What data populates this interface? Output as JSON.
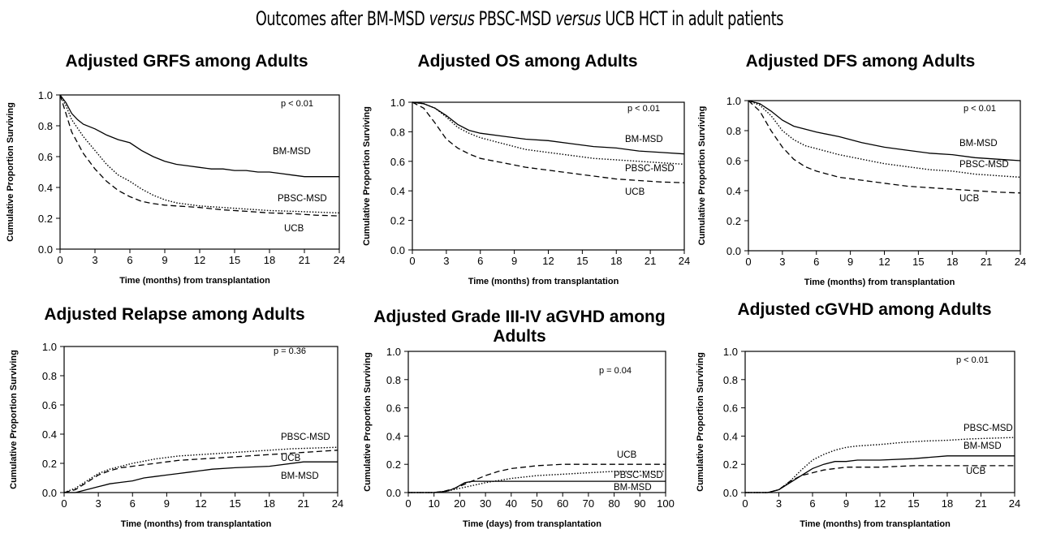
{
  "figure": {
    "title_part1": "Outcomes after BM-MSD ",
    "title_italic1": "versus",
    "title_part2": " PBSC-MSD ",
    "title_italic2": "versus",
    "title_part3": " UCB HCT in adult patients"
  },
  "chart_data": [
    {
      "id": "grfs",
      "type": "line",
      "title": "Adjusted GRFS among Adults",
      "xlabel": "Time (months) from transplantation",
      "ylabel": "Cumulative Proportion Surviving",
      "xlim": [
        0,
        24
      ],
      "ylim": [
        0,
        1
      ],
      "xticks": [
        0,
        3,
        6,
        9,
        12,
        15,
        18,
        21,
        24
      ],
      "yticks": [
        0,
        0.2,
        0.4,
        0.6,
        0.8,
        1
      ],
      "ytick_labels": [
        "0.0",
        "0.2",
        "0.4",
        "0.6",
        "0.8",
        "1.0"
      ],
      "annotation": "p < 0.01",
      "series": [
        {
          "name": "BM-MSD",
          "style": "solid",
          "x": [
            0,
            0.5,
            1,
            1.5,
            2,
            3,
            4,
            5,
            6,
            7,
            8,
            9,
            10,
            11,
            12,
            13,
            14,
            15,
            16,
            17,
            18,
            19,
            20,
            21,
            22,
            23,
            24
          ],
          "y": [
            1.0,
            0.95,
            0.88,
            0.84,
            0.81,
            0.78,
            0.74,
            0.71,
            0.69,
            0.64,
            0.6,
            0.57,
            0.55,
            0.54,
            0.53,
            0.52,
            0.52,
            0.51,
            0.51,
            0.5,
            0.5,
            0.49,
            0.48,
            0.47,
            0.47,
            0.47,
            0.47
          ]
        },
        {
          "name": "PBSC-MSD",
          "style": "dotted",
          "x": [
            0,
            0.5,
            1,
            2,
            3,
            4,
            5,
            6,
            7,
            8,
            9,
            10,
            11,
            12,
            14,
            16,
            18,
            20,
            22,
            24
          ],
          "y": [
            1.0,
            0.93,
            0.84,
            0.73,
            0.64,
            0.55,
            0.48,
            0.44,
            0.39,
            0.35,
            0.32,
            0.3,
            0.29,
            0.28,
            0.27,
            0.26,
            0.25,
            0.245,
            0.24,
            0.235
          ]
        },
        {
          "name": "UCB",
          "style": "dashed",
          "x": [
            0,
            0.5,
            1,
            2,
            3,
            4,
            5,
            6,
            7,
            8,
            9,
            10,
            12,
            14,
            16,
            18,
            20,
            22,
            24
          ],
          "y": [
            1.0,
            0.88,
            0.76,
            0.62,
            0.52,
            0.44,
            0.38,
            0.34,
            0.31,
            0.295,
            0.285,
            0.28,
            0.27,
            0.255,
            0.245,
            0.235,
            0.23,
            0.22,
            0.215
          ]
        }
      ],
      "series_labels": [
        "BM-MSD",
        "PBSC-MSD",
        "UCB"
      ]
    },
    {
      "id": "os",
      "type": "line",
      "title": "Adjusted OS among Adults",
      "xlabel": "Time (months)  from transplantation",
      "ylabel": "Cumulative Proportion Surviving",
      "xlim": [
        0,
        24
      ],
      "ylim": [
        0,
        1
      ],
      "xticks": [
        0,
        3,
        6,
        9,
        12,
        15,
        18,
        21,
        24
      ],
      "yticks": [
        0,
        0.2,
        0.4,
        0.6,
        0.8,
        1
      ],
      "ytick_labels": [
        "0.0",
        "0.2",
        "0.4",
        "0.6",
        "0.8",
        "1.0"
      ],
      "annotation": "p < 0.01",
      "series": [
        {
          "name": "BM-MSD",
          "style": "solid",
          "x": [
            0,
            1,
            2,
            3,
            4,
            5,
            6,
            8,
            10,
            12,
            14,
            16,
            18,
            20,
            22,
            24
          ],
          "y": [
            1.0,
            0.99,
            0.96,
            0.91,
            0.85,
            0.81,
            0.79,
            0.77,
            0.75,
            0.74,
            0.72,
            0.7,
            0.69,
            0.67,
            0.66,
            0.65
          ]
        },
        {
          "name": "PBSC-MSD",
          "style": "dotted",
          "x": [
            0,
            1,
            2,
            3,
            4,
            5,
            6,
            8,
            10,
            12,
            14,
            16,
            18,
            20,
            22,
            24
          ],
          "y": [
            1.0,
            0.99,
            0.96,
            0.9,
            0.83,
            0.79,
            0.76,
            0.72,
            0.68,
            0.66,
            0.64,
            0.62,
            0.61,
            0.6,
            0.59,
            0.58
          ]
        },
        {
          "name": "UCB",
          "style": "dashed",
          "x": [
            0,
            1,
            2,
            3,
            4,
            5,
            6,
            8,
            10,
            12,
            14,
            16,
            18,
            20,
            22,
            24
          ],
          "y": [
            1.0,
            0.96,
            0.86,
            0.75,
            0.69,
            0.65,
            0.62,
            0.59,
            0.56,
            0.54,
            0.52,
            0.5,
            0.48,
            0.47,
            0.46,
            0.455
          ]
        }
      ],
      "series_labels": [
        "BM-MSD",
        "PBSC-MSD",
        "UCB"
      ]
    },
    {
      "id": "dfs",
      "type": "line",
      "title": "Adjusted DFS among Adults",
      "xlabel": "Time (months)  from transplantation",
      "ylabel": "Cumulative Proportion Surviving",
      "xlim": [
        0,
        24
      ],
      "ylim": [
        0,
        1
      ],
      "xticks": [
        0,
        3,
        6,
        9,
        12,
        15,
        18,
        21,
        24
      ],
      "yticks": [
        0,
        0.2,
        0.4,
        0.6,
        0.8,
        1
      ],
      "ytick_labels": [
        "0.0",
        "0.2",
        "0.4",
        "0.6",
        "0.8",
        "1.0"
      ],
      "annotation": "p < 0.01",
      "series": [
        {
          "name": "BM-MSD",
          "style": "solid",
          "x": [
            0,
            1,
            2,
            3,
            4,
            5,
            6,
            8,
            10,
            12,
            14,
            16,
            18,
            20,
            22,
            24
          ],
          "y": [
            1.0,
            0.98,
            0.93,
            0.87,
            0.83,
            0.81,
            0.79,
            0.76,
            0.72,
            0.69,
            0.67,
            0.65,
            0.64,
            0.62,
            0.61,
            0.6
          ]
        },
        {
          "name": "PBSC-MSD",
          "style": "dotted",
          "x": [
            0,
            1,
            2,
            3,
            4,
            5,
            6,
            8,
            10,
            12,
            14,
            16,
            18,
            20,
            22,
            24
          ],
          "y": [
            1.0,
            0.97,
            0.9,
            0.8,
            0.74,
            0.7,
            0.68,
            0.64,
            0.61,
            0.58,
            0.56,
            0.54,
            0.53,
            0.51,
            0.5,
            0.49
          ]
        },
        {
          "name": "UCB",
          "style": "dashed",
          "x": [
            0,
            1,
            2,
            3,
            4,
            5,
            6,
            8,
            10,
            12,
            14,
            16,
            18,
            20,
            22,
            24
          ],
          "y": [
            1.0,
            0.93,
            0.8,
            0.69,
            0.61,
            0.56,
            0.53,
            0.49,
            0.47,
            0.45,
            0.43,
            0.42,
            0.41,
            0.4,
            0.39,
            0.385
          ]
        }
      ],
      "series_labels": [
        "BM-MSD",
        "PBSC-MSD",
        "UCB"
      ]
    },
    {
      "id": "relapse",
      "type": "line",
      "title": "Adjusted Relapse among Adults",
      "xlabel": "Time (months)  from transplantation",
      "ylabel": "Cumulative Proportion Surviving",
      "xlim": [
        0,
        24
      ],
      "ylim": [
        0,
        1
      ],
      "xticks": [
        0,
        3,
        6,
        9,
        12,
        15,
        18,
        21,
        24
      ],
      "yticks": [
        0,
        0.2,
        0.4,
        0.6,
        0.8,
        1
      ],
      "ytick_labels": [
        "0.0",
        "0.2",
        "0.4",
        "0.6",
        "0.8",
        "1.0"
      ],
      "annotation": "p = 0.36",
      "series": [
        {
          "name": "PBSC-MSD",
          "style": "dotted",
          "x": [
            0,
            1,
            2,
            3,
            4,
            5,
            6,
            8,
            10,
            12,
            14,
            16,
            18,
            20,
            22,
            24
          ],
          "y": [
            0,
            0.03,
            0.08,
            0.13,
            0.16,
            0.18,
            0.2,
            0.23,
            0.25,
            0.26,
            0.27,
            0.28,
            0.29,
            0.3,
            0.305,
            0.31
          ]
        },
        {
          "name": "UCB",
          "style": "dashed",
          "x": [
            0,
            1,
            2,
            3,
            4,
            5,
            6,
            8,
            10,
            12,
            14,
            16,
            18,
            20,
            22,
            24
          ],
          "y": [
            0,
            0.02,
            0.07,
            0.12,
            0.15,
            0.17,
            0.18,
            0.2,
            0.22,
            0.23,
            0.24,
            0.25,
            0.26,
            0.27,
            0.28,
            0.29
          ]
        },
        {
          "name": "BM-MSD",
          "style": "solid",
          "x": [
            0,
            1,
            2,
            3,
            4,
            5,
            6,
            7,
            8,
            9,
            10,
            11,
            12,
            13,
            15,
            18,
            21,
            24
          ],
          "y": [
            0,
            0.0,
            0.02,
            0.04,
            0.06,
            0.07,
            0.08,
            0.1,
            0.11,
            0.12,
            0.13,
            0.14,
            0.15,
            0.16,
            0.17,
            0.18,
            0.21,
            0.21
          ]
        }
      ],
      "series_labels": [
        "PBSC-MSD",
        "UCB",
        "BM-MSD"
      ]
    },
    {
      "id": "agvhd",
      "type": "line",
      "title": "Adjusted Grade III-IV aGVHD among Adults",
      "title_lines": [
        "Adjusted Grade III-IV aGVHD among",
        "Adults"
      ],
      "xlabel": "Time (days)  from transplantation",
      "ylabel": "Cumulative Proportion Surviving",
      "xlim": [
        0,
        100
      ],
      "ylim": [
        0,
        1
      ],
      "xticks": [
        0,
        10,
        20,
        30,
        40,
        50,
        60,
        70,
        80,
        90,
        100
      ],
      "yticks": [
        0,
        0.2,
        0.4,
        0.6,
        0.8,
        1
      ],
      "ytick_labels": [
        "0.0",
        "0.2",
        "0.4",
        "0.6",
        "0.8",
        "1.0"
      ],
      "annotation": "p = 0.04",
      "series": [
        {
          "name": "UCB",
          "style": "dashed",
          "x": [
            0,
            10,
            14,
            18,
            22,
            26,
            30,
            35,
            40,
            45,
            50,
            60,
            70,
            80,
            90,
            100
          ],
          "y": [
            0,
            0.0,
            0.01,
            0.03,
            0.06,
            0.09,
            0.12,
            0.15,
            0.17,
            0.18,
            0.19,
            0.2,
            0.2,
            0.2,
            0.2,
            0.2
          ]
        },
        {
          "name": "PBSC-MSD",
          "style": "dotted",
          "x": [
            0,
            10,
            15,
            20,
            25,
            30,
            40,
            50,
            60,
            70,
            80,
            90,
            100
          ],
          "y": [
            0,
            0.0,
            0.01,
            0.03,
            0.05,
            0.07,
            0.1,
            0.12,
            0.13,
            0.14,
            0.15,
            0.15,
            0.15
          ]
        },
        {
          "name": "BM-MSD",
          "style": "solid",
          "x": [
            0,
            10,
            15,
            18,
            20,
            22,
            25,
            30,
            40,
            50,
            60,
            70,
            80,
            90,
            100
          ],
          "y": [
            0,
            0.0,
            0.01,
            0.03,
            0.05,
            0.07,
            0.08,
            0.08,
            0.08,
            0.08,
            0.08,
            0.08,
            0.08,
            0.08,
            0.08
          ]
        }
      ],
      "series_labels": [
        "UCB",
        "PBSC-MSD",
        "BM-MSD"
      ]
    },
    {
      "id": "cgvhd",
      "type": "line",
      "title": "Adjusted cGVHD among Adults",
      "xlabel": "Time (months)  from transplantation",
      "ylabel": "Cumulative Proportion Surviving",
      "xlim": [
        0,
        24
      ],
      "ylim": [
        0,
        1
      ],
      "xticks": [
        0,
        3,
        6,
        9,
        12,
        15,
        18,
        21,
        24
      ],
      "yticks": [
        0,
        0.2,
        0.4,
        0.6,
        0.8,
        1
      ],
      "ytick_labels": [
        "0.0",
        "0.2",
        "0.4",
        "0.6",
        "0.8",
        "1.0"
      ],
      "annotation": "p < 0.01",
      "series": [
        {
          "name": "PBSC-MSD",
          "style": "dotted",
          "x": [
            0,
            2,
            3,
            4,
            5,
            6,
            7,
            8,
            9,
            10,
            12,
            14,
            16,
            18,
            20,
            22,
            24
          ],
          "y": [
            0,
            0.0,
            0.02,
            0.08,
            0.16,
            0.23,
            0.27,
            0.3,
            0.32,
            0.33,
            0.34,
            0.355,
            0.365,
            0.37,
            0.38,
            0.385,
            0.39
          ]
        },
        {
          "name": "BM-MSD",
          "style": "solid",
          "x": [
            0,
            2,
            3,
            4,
            5,
            6,
            7,
            8,
            9,
            10,
            12,
            15,
            18,
            21,
            24
          ],
          "y": [
            0,
            0.0,
            0.02,
            0.07,
            0.12,
            0.17,
            0.2,
            0.22,
            0.22,
            0.23,
            0.23,
            0.24,
            0.26,
            0.26,
            0.26
          ]
        },
        {
          "name": "UCB",
          "style": "dashed",
          "x": [
            0,
            2,
            3,
            4,
            5,
            6,
            7,
            8,
            9,
            12,
            15,
            18,
            21,
            24
          ],
          "y": [
            0,
            0.0,
            0.02,
            0.08,
            0.12,
            0.14,
            0.16,
            0.17,
            0.18,
            0.18,
            0.19,
            0.19,
            0.19,
            0.19
          ]
        }
      ],
      "series_labels": [
        "PBSC-MSD",
        "BM-MSD",
        "UCB"
      ]
    }
  ]
}
